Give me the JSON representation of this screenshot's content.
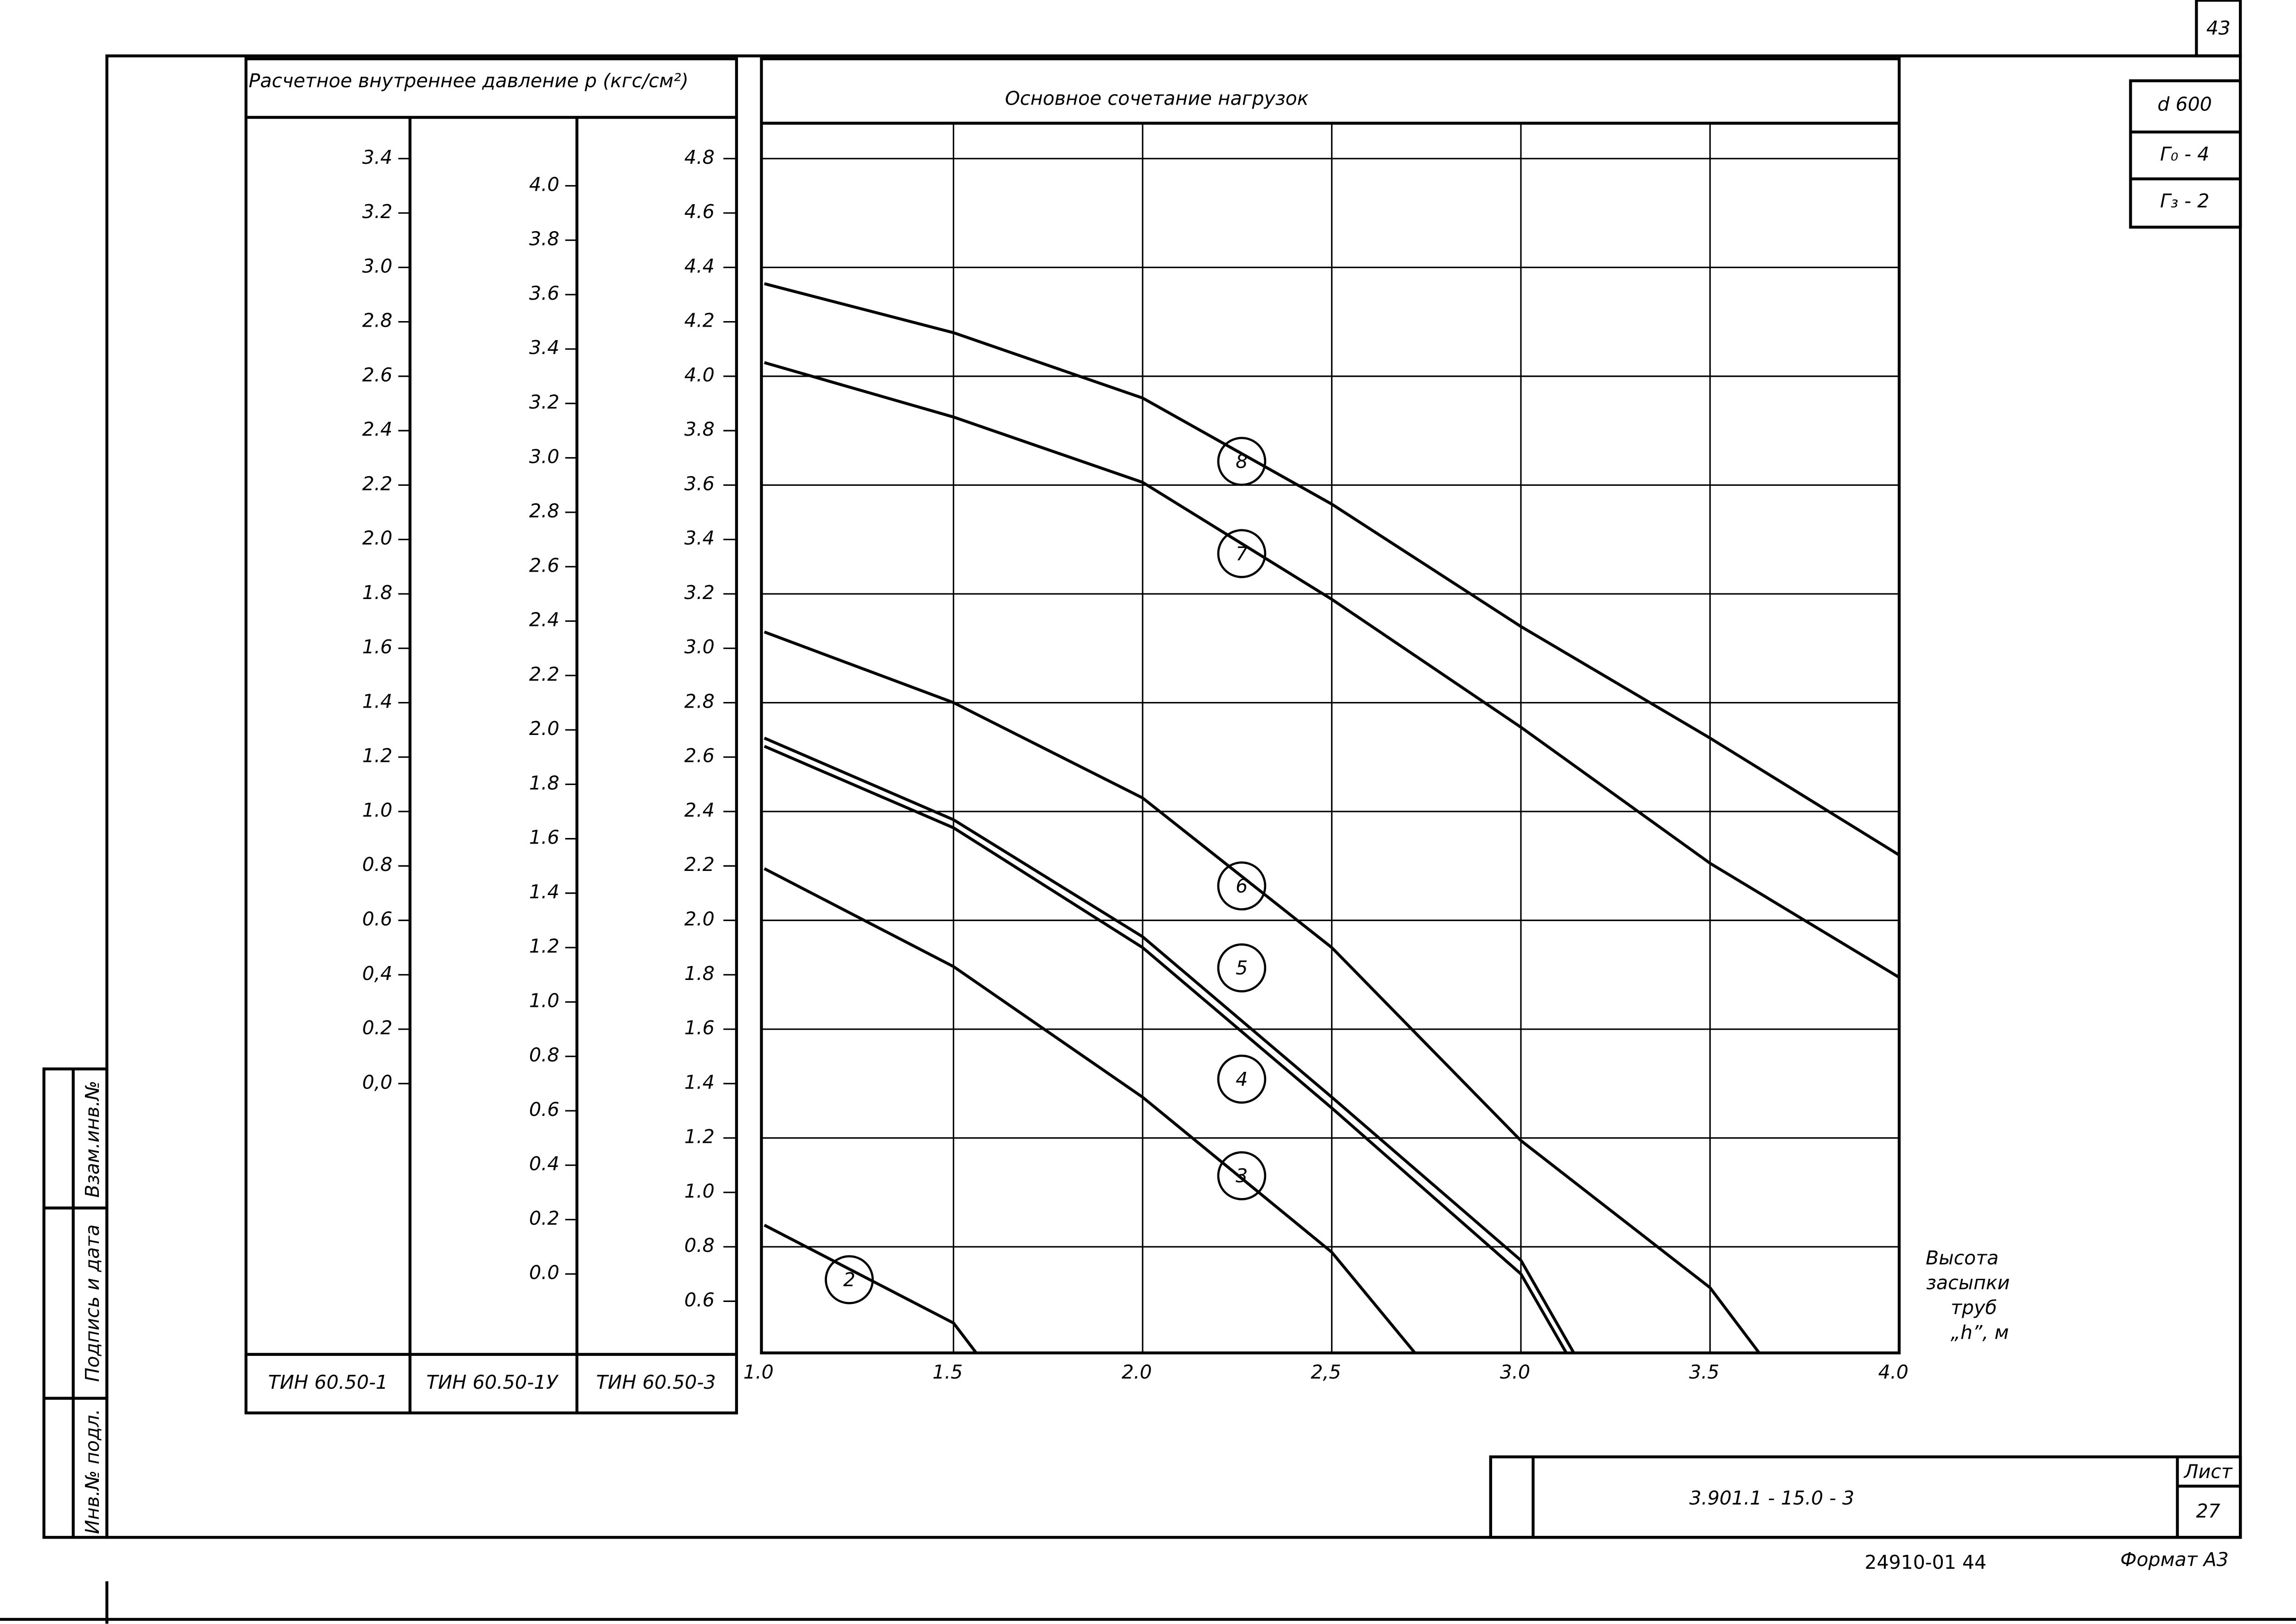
{
  "chart_data": {
    "type": "line",
    "title": "Основное сочетание нагрузок",
    "y_title": "Расчетное внутреннее давление р (кгс/см²)",
    "x_title": [
      "Высота",
      "засыпки",
      "труб",
      "„h”, м"
    ],
    "xlim": [
      1,
      4
    ],
    "xticks": [
      {
        "value": 1,
        "label": "1.0"
      },
      1.5,
      {
        "value": 2,
        "label": "2.0"
      },
      {
        "value": 2.5,
        "label": "2,5"
      },
      {
        "value": 3,
        "label": "3.0"
      },
      3.5,
      {
        "value": 4,
        "label": "4.0"
      }
    ],
    "ylim": [
      0.41,
      4.93
    ],
    "yticks": [
      4.8,
      4.6,
      4.4,
      4.2,
      {
        "value": 4,
        "label": "4.0"
      },
      3.8,
      3.6,
      3.4,
      3.2,
      {
        "value": 3,
        "label": "3.0"
      },
      2.8,
      2.6,
      2.4,
      2.2,
      {
        "value": 2,
        "label": "2.0"
      },
      1.8,
      1.6,
      1.4,
      1.2,
      {
        "value": 1,
        "label": "1.0"
      },
      0.8,
      0.6
    ],
    "grid": true,
    "scales": [
      {
        "name": "ТИН 60.50-1",
        "ylim": [
          -0.99,
          3.53
        ],
        "yticks": [
          3.4,
          3.2,
          {
            "value": 3,
            "label": "3.0"
          },
          2.8,
          2.6,
          2.4,
          2.2,
          {
            "value": 2,
            "label": "2.0"
          },
          1.8,
          1.6,
          1.4,
          1.2,
          {
            "value": 1,
            "label": "1.0"
          },
          0.8,
          0.6,
          {
            "value": 0.4,
            "label": "0,4"
          },
          0.2,
          {
            "value": 0,
            "label": "0,0"
          }
        ]
      },
      {
        "name": "ТИН 60.50-1У",
        "ylim": [
          -0.29,
          4.23
        ],
        "yticks": [
          {
            "value": 4,
            "label": "4.0"
          },
          3.8,
          3.6,
          3.4,
          3.2,
          {
            "value": 3,
            "label": "3.0"
          },
          2.8,
          2.6,
          2.4,
          2.2,
          {
            "value": 2,
            "label": "2.0"
          },
          1.8,
          1.6,
          1.4,
          1.2,
          {
            "value": 1,
            "label": "1.0"
          },
          0.8,
          0.6,
          0.4,
          0.2,
          {
            "value": 0,
            "label": "0.0"
          }
        ]
      },
      {
        "name": "ТИН 60.50-3"
      }
    ],
    "series": [
      {
        "name": "8",
        "color": "#000",
        "x": [
          1,
          1.5,
          2,
          2.5,
          3,
          3.5,
          4
        ],
        "values": [
          4.34,
          4.16,
          3.92,
          3.53,
          3.08,
          2.67,
          2.24
        ]
      },
      {
        "name": "7",
        "color": "#000",
        "x": [
          1,
          1.5,
          2,
          2.5,
          3,
          3.5,
          4
        ],
        "values": [
          4.05,
          3.85,
          3.61,
          3.18,
          2.71,
          2.21,
          1.79
        ]
      },
      {
        "name": "6",
        "color": "#000",
        "x": [
          1,
          1.5,
          2,
          2.5,
          3,
          3.5,
          3.63
        ],
        "values": [
          3.06,
          2.8,
          2.45,
          1.9,
          1.19,
          0.65,
          0.41
        ]
      },
      {
        "name": "5",
        "color": "#000",
        "x": [
          1,
          1.5,
          2,
          2.5,
          3,
          3.14
        ],
        "values": [
          2.67,
          2.37,
          1.94,
          1.35,
          0.75,
          0.41
        ]
      },
      {
        "name": "4",
        "color": "#000",
        "x": [
          1,
          1.5,
          2,
          2.5,
          3,
          3.12
        ],
        "values": [
          2.64,
          2.34,
          1.9,
          1.31,
          0.7,
          0.41
        ]
      },
      {
        "name": "3",
        "color": "#000",
        "x": [
          1,
          1.5,
          2,
          2.5,
          2.72
        ],
        "values": [
          2.19,
          1.83,
          1.35,
          0.78,
          0.41
        ]
      },
      {
        "name": "2",
        "color": "#000",
        "x": [
          1,
          1.5,
          1.56
        ],
        "values": [
          0.88,
          0.52,
          0.41
        ]
      }
    ]
  },
  "stamp": {
    "page": "43",
    "diameter": "d 600",
    "g0": "Г₀ - 4",
    "g3": "Г₃ - 2",
    "code": "3.901.1 - 15.0 - 3",
    "sheet_label": "Лист",
    "sheet": "27",
    "number": "24910-01 44",
    "format": "Формат А3",
    "margin": [
      "Инв.№ подл.",
      "Подпись и дата",
      "Взам.инв.№"
    ]
  }
}
